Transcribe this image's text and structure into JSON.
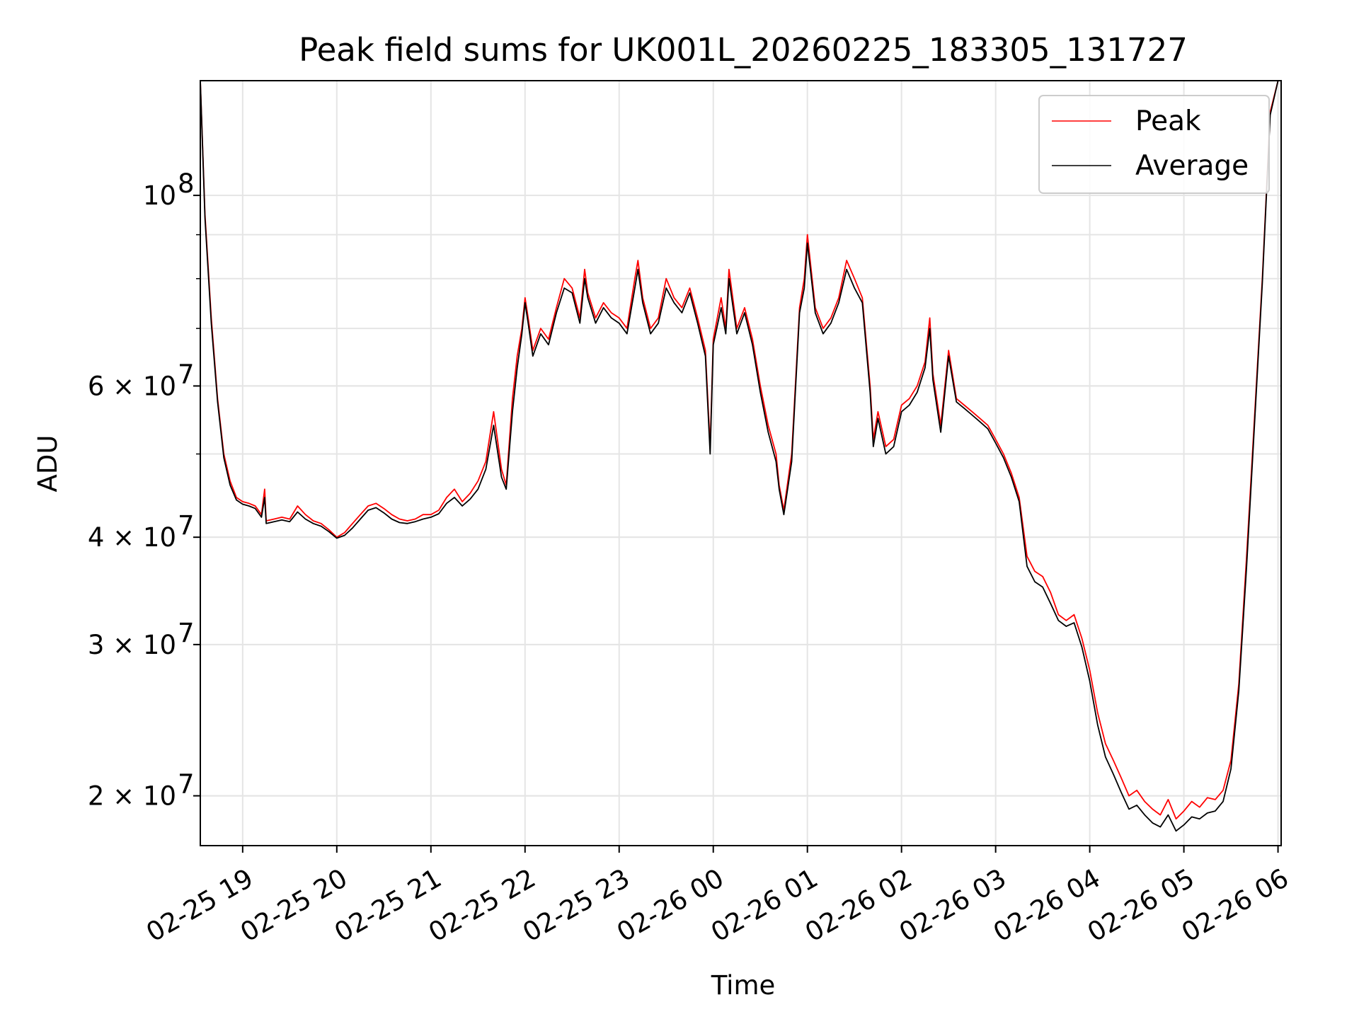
{
  "chart_data": {
    "type": "line",
    "title": "Peak field sums for UK001L_20260225_183305_131727",
    "xlabel": "Time",
    "ylabel": "ADU",
    "yscale": "log",
    "grid": true,
    "legend_placement": "top-right",
    "x_ticks": [
      "02-25 19",
      "02-25 20",
      "02-25 21",
      "02-25 22",
      "02-25 23",
      "02-26 00",
      "02-26 01",
      "02-26 02",
      "02-26 03",
      "02-26 04",
      "02-26 05",
      "02-26 06"
    ],
    "xlim": [
      "2026-02-25 18:33",
      "2026-02-26 06:02"
    ],
    "ylim": [
      17500000,
      136000000
    ],
    "y_ticks": [
      {
        "value": 20000000,
        "label": "2 × 10",
        "exp": "7"
      },
      {
        "value": 30000000,
        "label": "3 × 10",
        "exp": "7"
      },
      {
        "value": 40000000,
        "label": "4 × 10",
        "exp": "7"
      },
      {
        "value": 60000000,
        "label": "6 × 10",
        "exp": "7"
      },
      {
        "value": 100000000,
        "label": "10",
        "exp": "8"
      }
    ],
    "series": [
      {
        "name": "Peak",
        "color": "#ff0000",
        "x": [
          "18:33",
          "18:36",
          "18:40",
          "18:44",
          "18:48",
          "18:52",
          "18:56",
          "19:00",
          "19:04",
          "19:08",
          "19:12",
          "19:14",
          "19:15",
          "19:20",
          "19:25",
          "19:30",
          "19:35",
          "19:40",
          "19:45",
          "19:50",
          "19:55",
          "20:00",
          "20:05",
          "20:10",
          "20:15",
          "20:20",
          "20:25",
          "20:30",
          "20:35",
          "20:40",
          "20:45",
          "20:50",
          "20:55",
          "21:00",
          "21:05",
          "21:10",
          "21:15",
          "21:20",
          "21:25",
          "21:30",
          "21:35",
          "21:40",
          "21:45",
          "21:48",
          "21:52",
          "21:55",
          "21:58",
          "22:00",
          "22:02",
          "22:05",
          "22:10",
          "22:15",
          "22:20",
          "22:25",
          "22:30",
          "22:35",
          "22:38",
          "22:40",
          "22:45",
          "22:50",
          "22:55",
          "23:00",
          "23:05",
          "23:10",
          "23:12",
          "23:15",
          "23:20",
          "23:25",
          "23:30",
          "23:35",
          "23:40",
          "23:45",
          "23:50",
          "23:55",
          "23:58",
          "00:00",
          "00:05",
          "00:08",
          "00:10",
          "00:15",
          "00:20",
          "00:25",
          "00:30",
          "00:35",
          "00:40",
          "00:42",
          "00:45",
          "00:50",
          "00:55",
          "00:58",
          "01:00",
          "01:05",
          "01:10",
          "01:15",
          "01:20",
          "01:25",
          "01:30",
          "01:35",
          "01:40",
          "01:42",
          "01:45",
          "01:50",
          "01:55",
          "02:00",
          "02:05",
          "02:10",
          "02:15",
          "02:18",
          "02:20",
          "02:25",
          "02:30",
          "02:35",
          "02:40",
          "02:45",
          "02:50",
          "02:55",
          "03:00",
          "03:05",
          "03:10",
          "03:15",
          "03:20",
          "03:25",
          "03:30",
          "03:35",
          "03:40",
          "03:45",
          "03:50",
          "03:55",
          "04:00",
          "04:05",
          "04:10",
          "04:15",
          "04:20",
          "04:25",
          "04:30",
          "04:35",
          "04:40",
          "04:45",
          "04:50",
          "04:55",
          "05:00",
          "05:05",
          "05:10",
          "05:15",
          "05:20",
          "05:25",
          "05:30",
          "05:35",
          "05:40",
          "05:45",
          "05:50",
          "05:55",
          "06:00",
          "06:02"
        ],
        "values": [
          136000000,
          95000000,
          72000000,
          58000000,
          50000000,
          46500000,
          44500000,
          44000000,
          43800000,
          43500000,
          42500000,
          45500000,
          41800000,
          42000000,
          42200000,
          42000000,
          43500000,
          42500000,
          41800000,
          41500000,
          40800000,
          40000000,
          40500000,
          41500000,
          42500000,
          43500000,
          43800000,
          43200000,
          42500000,
          42000000,
          41800000,
          42000000,
          42500000,
          42500000,
          43000000,
          44500000,
          45500000,
          44000000,
          45000000,
          46500000,
          49000000,
          56000000,
          48000000,
          46000000,
          58000000,
          65000000,
          70000000,
          76000000,
          72000000,
          66000000,
          70000000,
          68000000,
          74000000,
          80000000,
          78000000,
          72000000,
          82000000,
          77000000,
          72000000,
          75000000,
          73000000,
          72000000,
          70000000,
          80000000,
          84000000,
          76000000,
          70000000,
          72000000,
          80000000,
          76000000,
          74000000,
          78000000,
          72000000,
          66000000,
          51000000,
          68000000,
          76000000,
          70000000,
          82000000,
          70000000,
          74000000,
          68000000,
          60000000,
          54000000,
          50000000,
          46000000,
          43000000,
          50000000,
          74000000,
          80000000,
          90000000,
          74000000,
          70000000,
          72000000,
          76000000,
          84000000,
          80000000,
          76000000,
          60000000,
          52000000,
          56000000,
          51000000,
          52000000,
          57000000,
          58000000,
          60000000,
          64000000,
          72000000,
          62000000,
          54000000,
          66000000,
          58000000,
          57000000,
          56000000,
          55000000,
          54000000,
          52000000,
          50000000,
          47500000,
          44500000,
          38000000,
          36500000,
          36000000,
          34500000,
          32500000,
          32000000,
          32500000,
          30500000,
          28000000,
          25000000,
          23000000,
          22000000,
          21000000,
          20000000,
          20300000,
          19700000,
          19300000,
          19000000,
          19800000,
          18800000,
          19200000,
          19700000,
          19400000,
          19900000,
          19800000,
          20300000,
          22000000,
          27000000,
          38000000,
          55000000,
          80000000,
          125000000,
          136000000,
          136000000
        ]
      },
      {
        "name": "Average",
        "color": "#000000",
        "x": [
          "18:33",
          "18:36",
          "18:40",
          "18:44",
          "18:48",
          "18:52",
          "18:56",
          "19:00",
          "19:04",
          "19:08",
          "19:12",
          "19:14",
          "19:15",
          "19:20",
          "19:25",
          "19:30",
          "19:35",
          "19:40",
          "19:45",
          "19:50",
          "19:55",
          "20:00",
          "20:05",
          "20:10",
          "20:15",
          "20:20",
          "20:25",
          "20:30",
          "20:35",
          "20:40",
          "20:45",
          "20:50",
          "20:55",
          "21:00",
          "21:05",
          "21:10",
          "21:15",
          "21:20",
          "21:25",
          "21:30",
          "21:35",
          "21:40",
          "21:45",
          "21:48",
          "21:52",
          "21:55",
          "21:58",
          "22:00",
          "22:02",
          "22:05",
          "22:10",
          "22:15",
          "22:20",
          "22:25",
          "22:30",
          "22:35",
          "22:38",
          "22:40",
          "22:45",
          "22:50",
          "22:55",
          "23:00",
          "23:05",
          "23:10",
          "23:12",
          "23:15",
          "23:20",
          "23:25",
          "23:30",
          "23:35",
          "23:40",
          "23:45",
          "23:50",
          "23:55",
          "23:58",
          "00:00",
          "00:05",
          "00:08",
          "00:10",
          "00:15",
          "00:20",
          "00:25",
          "00:30",
          "00:35",
          "00:40",
          "00:42",
          "00:45",
          "00:50",
          "00:55",
          "00:58",
          "01:00",
          "01:05",
          "01:10",
          "01:15",
          "01:20",
          "01:25",
          "01:30",
          "01:35",
          "01:40",
          "01:42",
          "01:45",
          "01:50",
          "01:55",
          "02:00",
          "02:05",
          "02:10",
          "02:15",
          "02:18",
          "02:20",
          "02:25",
          "02:30",
          "02:35",
          "02:40",
          "02:45",
          "02:50",
          "02:55",
          "03:00",
          "03:05",
          "03:10",
          "03:15",
          "03:20",
          "03:25",
          "03:30",
          "03:35",
          "03:40",
          "03:45",
          "03:50",
          "03:55",
          "04:00",
          "04:05",
          "04:10",
          "04:15",
          "04:20",
          "04:25",
          "04:30",
          "04:35",
          "04:40",
          "04:45",
          "04:50",
          "04:55",
          "05:00",
          "05:05",
          "05:10",
          "05:15",
          "05:20",
          "05:25",
          "05:30",
          "05:35",
          "05:40",
          "05:45",
          "05:50",
          "05:55",
          "06:00",
          "06:02"
        ],
        "values": [
          136000000,
          94000000,
          71000000,
          57500000,
          49500000,
          46000000,
          44200000,
          43700000,
          43500000,
          43200000,
          42200000,
          44500000,
          41500000,
          41700000,
          41900000,
          41700000,
          42800000,
          42000000,
          41500000,
          41200000,
          40600000,
          39900000,
          40200000,
          41000000,
          42000000,
          43000000,
          43300000,
          42700000,
          42000000,
          41600000,
          41500000,
          41700000,
          42000000,
          42200000,
          42600000,
          43800000,
          44500000,
          43500000,
          44300000,
          45500000,
          48000000,
          54000000,
          47000000,
          45500000,
          56000000,
          63000000,
          69000000,
          75000000,
          71000000,
          65000000,
          69000000,
          67000000,
          73000000,
          78000000,
          77000000,
          71000000,
          80000000,
          76000000,
          71000000,
          74000000,
          72000000,
          71000000,
          69000000,
          78000000,
          82000000,
          75000000,
          69000000,
          71000000,
          78000000,
          75000000,
          73000000,
          77000000,
          71000000,
          65000000,
          50000000,
          67000000,
          74000000,
          69000000,
          80000000,
          69000000,
          73000000,
          67000000,
          59000000,
          53000000,
          49000000,
          45500000,
          42500000,
          49000000,
          73000000,
          78000000,
          88000000,
          73000000,
          69000000,
          71000000,
          75000000,
          82000000,
          78000000,
          75000000,
          59000000,
          51000000,
          55000000,
          50000000,
          51000000,
          56000000,
          57000000,
          59000000,
          63000000,
          70000000,
          61000000,
          53000000,
          65000000,
          57500000,
          56500000,
          55500000,
          54500000,
          53500000,
          51500000,
          49500000,
          47000000,
          44000000,
          37000000,
          35500000,
          35000000,
          33500000,
          32000000,
          31500000,
          31800000,
          29800000,
          27200000,
          24200000,
          22200000,
          21200000,
          20200000,
          19300000,
          19500000,
          19000000,
          18600000,
          18400000,
          19000000,
          18200000,
          18500000,
          18900000,
          18800000,
          19100000,
          19200000,
          19700000,
          21500000,
          26500000,
          37000000,
          54000000,
          79000000,
          124000000,
          136000000,
          136000000
        ]
      }
    ]
  }
}
